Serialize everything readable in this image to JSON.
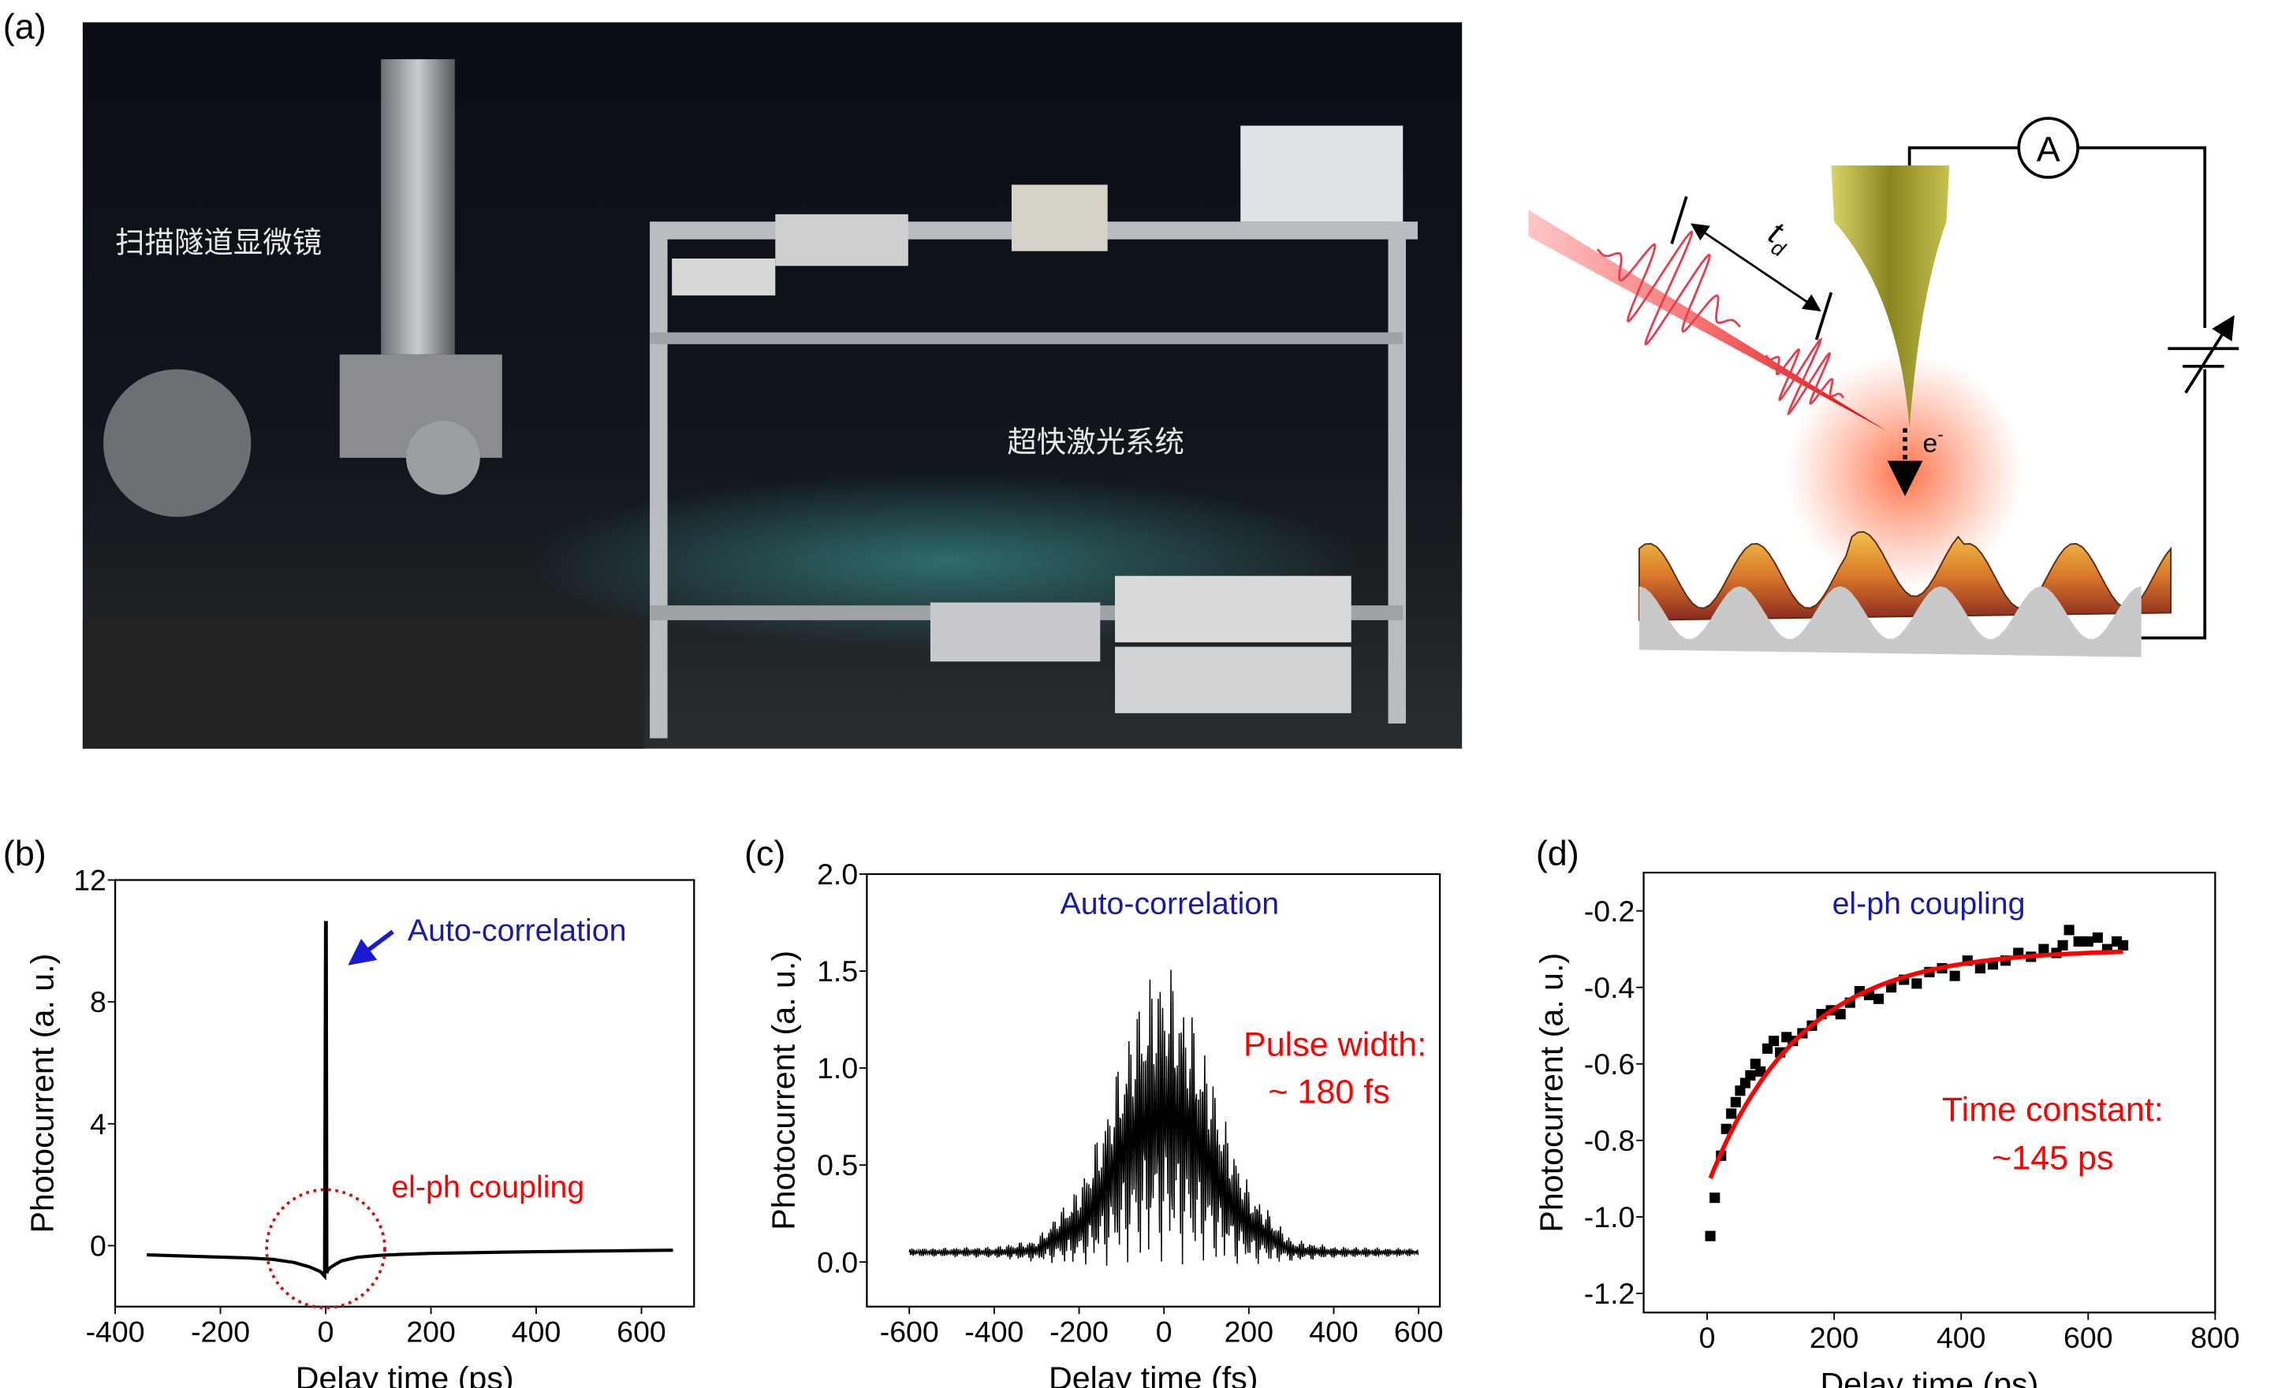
{
  "panels": {
    "a": {
      "label": "(a)",
      "photo_label_stm": "扫描隧道显微镜",
      "photo_label_laser": "超快激光系统",
      "ammeter": "A",
      "delay_symbol": "t",
      "delay_subscript": "d",
      "electron": "e",
      "electron_sup": "-"
    },
    "b": {
      "label": "(b)"
    },
    "c": {
      "label": "(c)"
    },
    "d": {
      "label": "(d)"
    }
  },
  "colors": {
    "blue_annot": "#1a1aa6",
    "red_annot": "#ff0000",
    "data": "#000000",
    "fit": "#ff0000"
  },
  "chart_data": [
    {
      "id": "b",
      "type": "line",
      "xlabel": "Delay time (ps)",
      "ylabel": "Photocurrent (a. u.)",
      "xlim": [
        -400,
        700
      ],
      "ylim": [
        -2,
        12
      ],
      "xticks": [
        "-400",
        "-200",
        "0",
        "200",
        "400",
        "600"
      ],
      "xtick_values": [
        -400,
        -200,
        0,
        200,
        400,
        600
      ],
      "yticks": [
        "0",
        "4",
        "8",
        "12"
      ],
      "ytick_values": [
        0,
        4,
        8,
        12
      ],
      "annotations": [
        "Auto-correlation",
        "el-ph coupling"
      ],
      "series": [
        {
          "name": "photocurrent",
          "x": [
            -340,
            -250,
            -150,
            -100,
            -60,
            -30,
            -10,
            -2,
            0,
            1,
            2,
            4,
            10,
            30,
            60,
            100,
            150,
            200,
            300,
            400,
            500,
            600,
            660
          ],
          "y": [
            -0.3,
            -0.35,
            -0.4,
            -0.45,
            -0.55,
            -0.7,
            -0.85,
            -1.0,
            10.6,
            10.6,
            -0.9,
            -0.8,
            -0.7,
            -0.5,
            -0.38,
            -0.32,
            -0.28,
            -0.25,
            -0.22,
            -0.2,
            -0.18,
            -0.16,
            -0.15
          ]
        }
      ]
    },
    {
      "id": "c",
      "type": "line",
      "xlabel": "Delay time (fs)",
      "ylabel": "Photocurrent (a. u.)",
      "xlim": [
        -700,
        650
      ],
      "ylim": [
        -0.23,
        2.0
      ],
      "xticks": [
        "-600",
        "-400",
        "-200",
        "0",
        "200",
        "400",
        "600"
      ],
      "xtick_values": [
        -600,
        -400,
        -200,
        0,
        200,
        400,
        600
      ],
      "yticks": [
        "0.0",
        "0.5",
        "1.0",
        "1.5",
        "2.0"
      ],
      "ytick_values": [
        0,
        0.5,
        1.0,
        1.5,
        2.0
      ],
      "annotations": [
        "Auto-correlation",
        "Pulse width:",
        "~ 180 fs"
      ],
      "baseline": 0.05,
      "envelope": {
        "x": [
          -600,
          -400,
          -300,
          -200,
          -150,
          -100,
          -50,
          0,
          50,
          100,
          150,
          200,
          300,
          400,
          600
        ],
        "upper": [
          0.07,
          0.08,
          0.12,
          0.4,
          0.7,
          1.1,
          1.45,
          1.6,
          1.4,
          1.1,
          0.7,
          0.4,
          0.12,
          0.08,
          0.07
        ],
        "lower": [
          0.03,
          0.02,
          0.0,
          -0.02,
          -0.02,
          -0.02,
          -0.02,
          -0.02,
          -0.02,
          -0.02,
          -0.02,
          -0.02,
          0.0,
          0.02,
          0.03
        ]
      }
    },
    {
      "id": "d",
      "type": "scatter",
      "xlabel": "Delay time (ps)",
      "ylabel": "Photocurrent (a. u.)",
      "xlim": [
        -100,
        800
      ],
      "ylim": [
        -1.25,
        -0.1
      ],
      "xticks": [
        "0",
        "200",
        "400",
        "600",
        "800"
      ],
      "xtick_values": [
        0,
        200,
        400,
        600,
        800
      ],
      "yticks": [
        "-0.2",
        "-0.4",
        "-0.6",
        "-0.8",
        "-1.0",
        "-1.2"
      ],
      "ytick_values": [
        -0.2,
        -0.4,
        -0.6,
        -0.8,
        -1.0,
        -1.2
      ],
      "annotations": [
        "el-ph coupling",
        "Time constant:",
        "~145 ps"
      ],
      "series": [
        {
          "name": "data",
          "x": [
            5,
            12,
            22,
            30,
            38,
            45,
            52,
            60,
            68,
            76,
            84,
            95,
            105,
            115,
            125,
            135,
            150,
            165,
            180,
            195,
            210,
            225,
            240,
            255,
            270,
            290,
            310,
            330,
            350,
            370,
            390,
            410,
            430,
            450,
            470,
            490,
            510,
            530,
            550,
            560,
            570,
            585,
            600,
            615,
            630,
            645,
            655
          ],
          "y": [
            -1.05,
            -0.95,
            -0.84,
            -0.77,
            -0.73,
            -0.7,
            -0.67,
            -0.65,
            -0.63,
            -0.6,
            -0.62,
            -0.56,
            -0.54,
            -0.57,
            -0.53,
            -0.54,
            -0.52,
            -0.5,
            -0.47,
            -0.46,
            -0.47,
            -0.44,
            -0.41,
            -0.42,
            -0.43,
            -0.4,
            -0.38,
            -0.39,
            -0.36,
            -0.35,
            -0.37,
            -0.33,
            -0.35,
            -0.34,
            -0.33,
            -0.31,
            -0.32,
            -0.3,
            -0.31,
            -0.29,
            -0.25,
            -0.28,
            -0.28,
            -0.27,
            -0.3,
            -0.28,
            -0.29
          ]
        }
      ],
      "fit": {
        "name": "exponential fit",
        "y_inf": -0.3,
        "amplitude": -0.62,
        "tau": 145,
        "x_range": [
          5,
          655
        ]
      }
    }
  ]
}
